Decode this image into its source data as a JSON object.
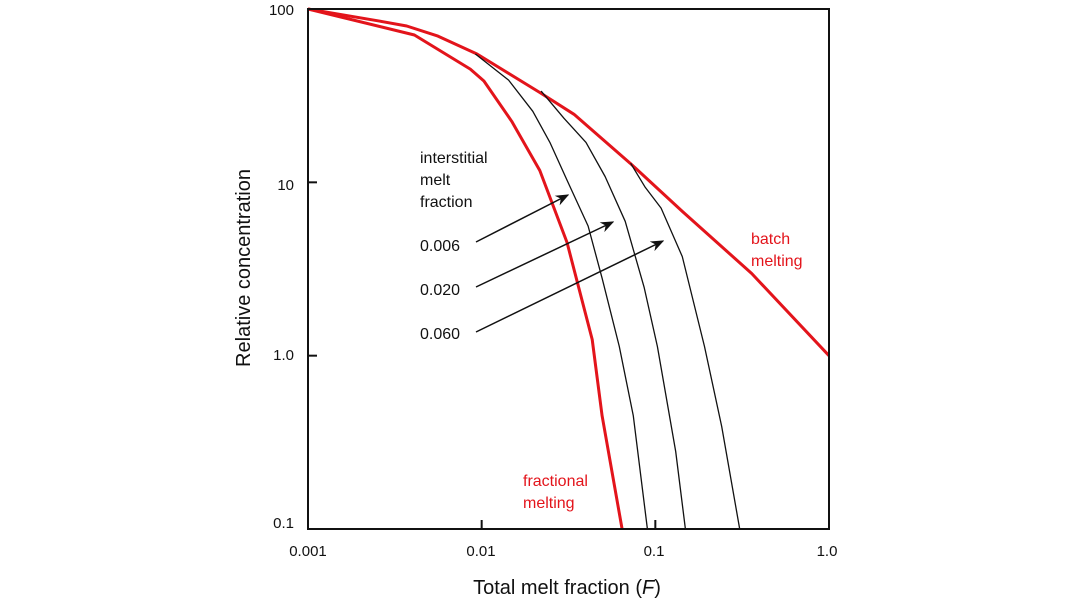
{
  "chart_data": {
    "type": "line",
    "xscale": "log",
    "yscale": "log",
    "xlim": [
      0.001,
      1.0
    ],
    "ylim": [
      0.1,
      100
    ],
    "xticks": [
      "0.001",
      "0.01",
      "0.1",
      "1.0"
    ],
    "xtick_values": [
      0.001,
      0.01,
      0.1,
      1.0
    ],
    "yticks": [
      "100",
      "10",
      "1.0",
      "0.1"
    ],
    "ytick_values": [
      100,
      10,
      1,
      0.1
    ],
    "xlabel_parts": [
      "Total melt fraction (",
      "F",
      ")"
    ],
    "ylabel": "Relative concentration",
    "grid": false,
    "colors": {
      "red": "#e3141b",
      "black": "#111111"
    },
    "series": [
      {
        "name": "batch melting",
        "color": "#e3141b",
        "x": [
          0.001,
          0.0026,
          0.0037,
          0.0056,
          0.0094,
          0.0216,
          0.034,
          0.0716,
          0.143,
          0.359,
          1.0
        ],
        "y": [
          100,
          85,
          79.8,
          69.8,
          55,
          33,
          24.7,
          12.9,
          6.8,
          2.98,
          1.0
        ]
      },
      {
        "name": "fractional melting",
        "color": "#e3141b",
        "x": [
          0.001,
          0.0041,
          0.0086,
          0.0103,
          0.0149,
          0.0216,
          0.031,
          0.0433,
          0.0494,
          0.0644
        ],
        "y": [
          100,
          70.8,
          45,
          38.4,
          22.5,
          11.7,
          4.5,
          1.24,
          0.45,
          0.1
        ]
      },
      {
        "name": "0.006",
        "color": "#111111",
        "x": [
          0.0092,
          0.0143,
          0.0197,
          0.0247,
          0.031,
          0.041,
          0.0494,
          0.062,
          0.0747,
          0.09
        ],
        "y": [
          55,
          38.9,
          25.7,
          17,
          10.3,
          5.6,
          2.8,
          1.13,
          0.45,
          0.1
        ]
      },
      {
        "name": "0.020",
        "color": "#111111",
        "x": [
          0.022,
          0.0298,
          0.0399,
          0.0514,
          0.0671,
          0.0863,
          0.1028,
          0.131,
          0.149
        ],
        "y": [
          33.6,
          23.4,
          17,
          10.8,
          5.96,
          2.47,
          1.13,
          0.28,
          0.1
        ]
      },
      {
        "name": "0.060",
        "color": "#111111",
        "x": [
          0.072,
          0.0875,
          0.108,
          0.143,
          0.192,
          0.241,
          0.306
        ],
        "y": [
          12.9,
          9.35,
          7.1,
          3.73,
          1.13,
          0.39,
          0.1
        ]
      }
    ],
    "annotations": {
      "legend_title": [
        "interstitial",
        "melt",
        "fraction"
      ],
      "values": [
        "0.006",
        "0.020",
        "0.060"
      ],
      "batch": [
        "batch",
        "melting"
      ],
      "fractional": [
        "fractional",
        "melting"
      ]
    }
  }
}
